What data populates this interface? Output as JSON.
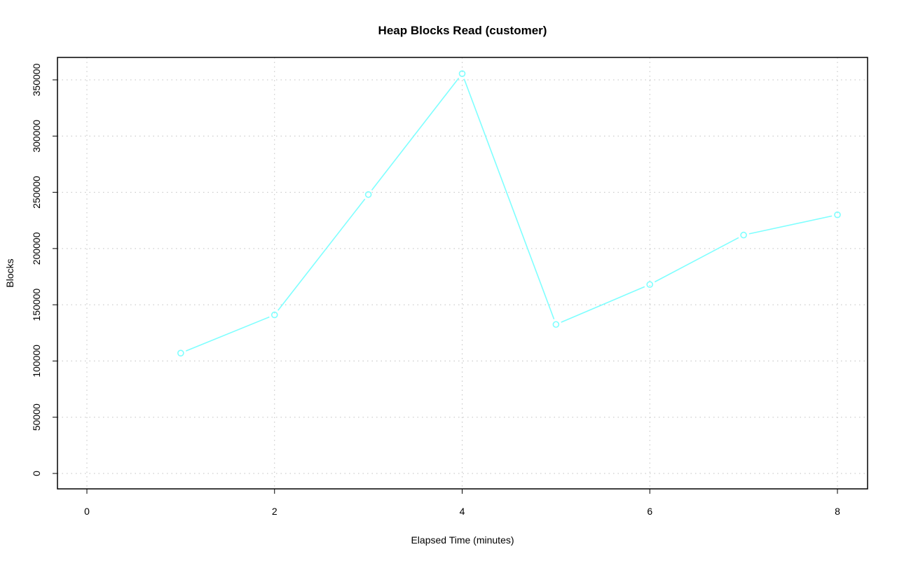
{
  "chart_data": {
    "type": "line",
    "title": "Heap Blocks Read (customer)",
    "xlabel": "Elapsed Time (minutes)",
    "ylabel": "Blocks",
    "xlim": [
      -0.3,
      8.3
    ],
    "ylim": [
      -14000,
      370000
    ],
    "x_ticks": [
      0,
      2,
      4,
      6,
      8
    ],
    "x_tick_labels": [
      "0",
      "2",
      "4",
      "6",
      "8"
    ],
    "y_ticks": [
      0,
      50000,
      100000,
      150000,
      200000,
      250000,
      300000,
      350000
    ],
    "y_tick_labels": [
      "0",
      "50000",
      "100000",
      "150000",
      "200000",
      "250000",
      "300000",
      "350000"
    ],
    "grid": true,
    "series": [
      {
        "color": "#7fffff",
        "marker": "open-circle",
        "x": [
          1,
          2,
          3,
          4,
          5,
          6,
          7,
          8
        ],
        "values": [
          107000,
          141000,
          248000,
          355500,
          132500,
          168000,
          212000,
          230000
        ]
      }
    ]
  }
}
